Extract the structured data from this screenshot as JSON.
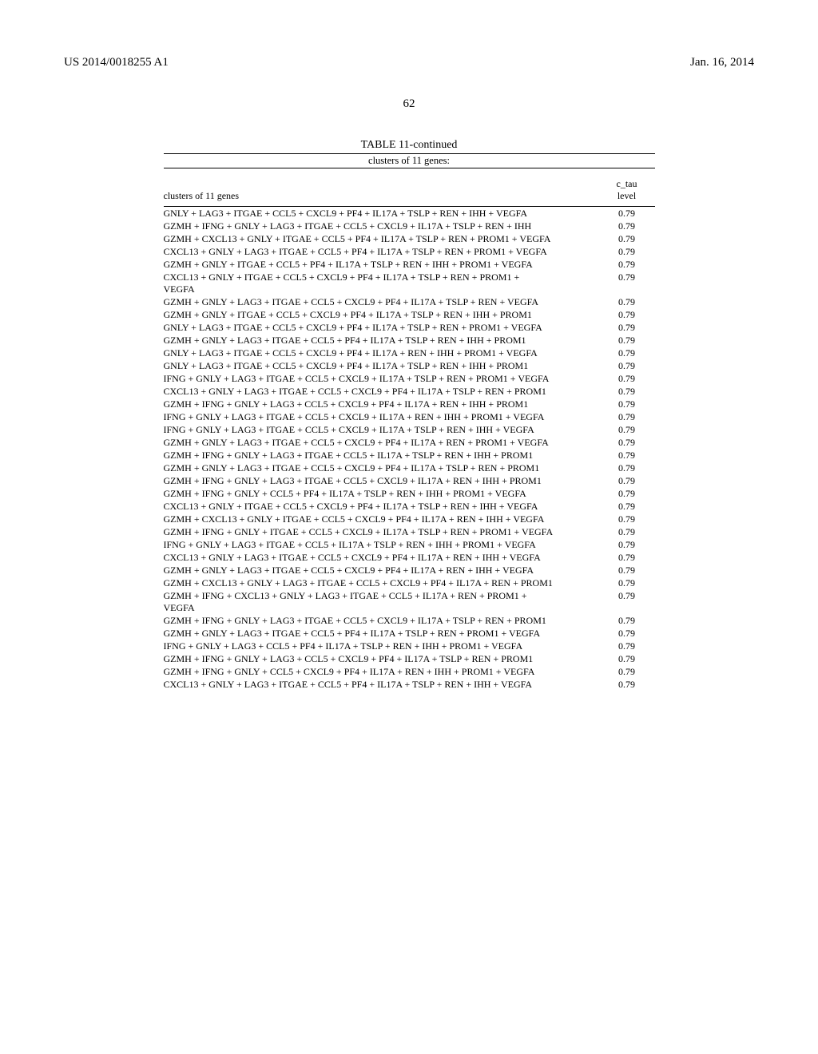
{
  "header": {
    "pub_number": "US 2014/0018255 A1",
    "pub_date": "Jan. 16, 2014",
    "page_number": "62"
  },
  "table": {
    "title": "TABLE 11-continued",
    "subtitle": "clusters of 11 genes:",
    "columns": {
      "left": "clusters of 11 genes",
      "right_line1": "c_tau",
      "right_line2": "level"
    },
    "rows": [
      {
        "cluster": "GNLY + LAG3 + ITGAE + CCL5 + CXCL9 + PF4 + IL17A + TSLP + REN + IHH + VEGFA",
        "ctau": "0.79"
      },
      {
        "cluster": "GZMH + IFNG + GNLY + LAG3 + ITGAE + CCL5 + CXCL9 + IL17A + TSLP + REN + IHH",
        "ctau": "0.79"
      },
      {
        "cluster": "GZMH + CXCL13 + GNLY + ITGAE + CCL5 + PF4 + IL17A + TSLP + REN + PROM1 + VEGFA",
        "ctau": "0.79"
      },
      {
        "cluster": "CXCL13 + GNLY + LAG3 + ITGAE + CCL5 + PF4 + IL17A + TSLP + REN + PROM1 + VEGFA",
        "ctau": "0.79"
      },
      {
        "cluster": "GZMH + GNLY + ITGAE + CCL5 + PF4 + IL17A + TSLP + REN + IHH + PROM1 + VEGFA",
        "ctau": "0.79"
      },
      {
        "cluster": "CXCL13 + GNLY + ITGAE + CCL5 + CXCL9 + PF4 + IL17A + TSLP + REN + PROM1 + VEGFA",
        "ctau": "0.79"
      },
      {
        "cluster": "GZMH + GNLY + LAG3 + ITGAE + CCL5 + CXCL9 + PF4 + IL17A + TSLP + REN + VEGFA",
        "ctau": "0.79"
      },
      {
        "cluster": "GZMH + GNLY + ITGAE + CCL5 + CXCL9 + PF4 + IL17A + TSLP + REN + IHH + PROM1",
        "ctau": "0.79"
      },
      {
        "cluster": "GNLY + LAG3 + ITGAE + CCL5 + CXCL9 + PF4 + IL17A + TSLP + REN + PROM1 + VEGFA",
        "ctau": "0.79"
      },
      {
        "cluster": "GZMH + GNLY + LAG3 + ITGAE + CCL5 + PF4 + IL17A + TSLP + REN + IHH + PROM1",
        "ctau": "0.79"
      },
      {
        "cluster": "GNLY + LAG3 + ITGAE + CCL5 + CXCL9 + PF4 + IL17A + REN + IHH + PROM1 + VEGFA",
        "ctau": "0.79"
      },
      {
        "cluster": "GNLY + LAG3 + ITGAE + CCL5 + CXCL9 + PF4 + IL17A + TSLP + REN + IHH + PROM1",
        "ctau": "0.79"
      },
      {
        "cluster": "IFNG + GNLY + LAG3 + ITGAE + CCL5 + CXCL9 + IL17A + TSLP + REN + PROM1 + VEGFA",
        "ctau": "0.79"
      },
      {
        "cluster": "CXCL13 + GNLY + LAG3 + ITGAE + CCL5 + CXCL9 + PF4 + IL17A + TSLP + REN + PROM1",
        "ctau": "0.79"
      },
      {
        "cluster": "GZMH + IFNG + GNLY + LAG3 + CCL5 + CXCL9 + PF4 + IL17A + REN + IHH + PROM1",
        "ctau": "0.79"
      },
      {
        "cluster": "IFNG + GNLY + LAG3 + ITGAE + CCL5 + CXCL9 + IL17A + REN + IHH + PROM1 + VEGFA",
        "ctau": "0.79"
      },
      {
        "cluster": "IFNG + GNLY + LAG3 + ITGAE + CCL5 + CXCL9 + IL17A + TSLP + REN + IHH + VEGFA",
        "ctau": "0.79"
      },
      {
        "cluster": "GZMH + GNLY + LAG3 + ITGAE + CCL5 + CXCL9 + PF4 + IL17A + REN + PROM1 + VEGFA",
        "ctau": "0.79"
      },
      {
        "cluster": "GZMH + IFNG + GNLY + LAG3 + ITGAE + CCL5 + IL17A + TSLP + REN + IHH + PROM1",
        "ctau": "0.79"
      },
      {
        "cluster": "GZMH + GNLY + LAG3 + ITGAE + CCL5 + CXCL9 + PF4 + IL17A + TSLP + REN + PROM1",
        "ctau": "0.79"
      },
      {
        "cluster": "GZMH + IFNG + GNLY + LAG3 + ITGAE + CCL5 + CXCL9 + IL17A + REN + IHH + PROM1",
        "ctau": "0.79"
      },
      {
        "cluster": "GZMH + IFNG + GNLY + CCL5 + PF4 + IL17A + TSLP + REN + IHH + PROM1 + VEGFA",
        "ctau": "0.79"
      },
      {
        "cluster": "CXCL13 + GNLY + ITGAE + CCL5 + CXCL9 + PF4 + IL17A + TSLP + REN + IHH + VEGFA",
        "ctau": "0.79"
      },
      {
        "cluster": "GZMH + CXCL13 + GNLY + ITGAE + CCL5 + CXCL9 + PF4 + IL17A + REN + IHH + VEGFA",
        "ctau": "0.79"
      },
      {
        "cluster": "GZMH + IFNG + GNLY + ITGAE + CCL5 + CXCL9 + IL17A + TSLP + REN + PROM1 + VEGFA",
        "ctau": "0.79"
      },
      {
        "cluster": "IFNG + GNLY + LAG3 + ITGAE + CCL5 + IL17A + TSLP + REN + IHH + PROM1 + VEGFA",
        "ctau": "0.79"
      },
      {
        "cluster": "CXCL13 + GNLY + LAG3 + ITGAE + CCL5 + CXCL9 + PF4 + IL17A + REN + IHH + VEGFA",
        "ctau": "0.79"
      },
      {
        "cluster": "GZMH + GNLY + LAG3 + ITGAE + CCL5 + CXCL9 + PF4 + IL17A + REN + IHH + VEGFA",
        "ctau": "0.79"
      },
      {
        "cluster": "GZMH + CXCL13 + GNLY + LAG3 + ITGAE + CCL5 + CXCL9 + PF4 + IL17A + REN + PROM1",
        "ctau": "0.79"
      },
      {
        "cluster": "GZMH + IFNG + CXCL13 + GNLY + LAG3 + ITGAE + CCL5 + IL17A + REN + PROM1 + VEGFA",
        "ctau": "0.79"
      },
      {
        "cluster": "GZMH + IFNG + GNLY + LAG3 + ITGAE + CCL5 + CXCL9 + IL17A + TSLP + REN + PROM1",
        "ctau": "0.79"
      },
      {
        "cluster": "GZMH + GNLY + LAG3 + ITGAE + CCL5 + PF4 + IL17A + TSLP + REN + PROM1 + VEGFA",
        "ctau": "0.79"
      },
      {
        "cluster": "IFNG + GNLY + LAG3 + CCL5 + PF4 + IL17A + TSLP + REN + IHH + PROM1 + VEGFA",
        "ctau": "0.79"
      },
      {
        "cluster": "GZMH + IFNG + GNLY + LAG3 + CCL5 + CXCL9 + PF4 + IL17A + TSLP + REN + PROM1",
        "ctau": "0.79"
      },
      {
        "cluster": "GZMH + IFNG + GNLY + CCL5 + CXCL9 + PF4 + IL17A + REN + IHH + PROM1 + VEGFA",
        "ctau": "0.79"
      },
      {
        "cluster": "CXCL13 + GNLY + LAG3 + ITGAE + CCL5 + PF4 + IL17A + TSLP + REN + IHH + VEGFA",
        "ctau": "0.79"
      }
    ]
  }
}
